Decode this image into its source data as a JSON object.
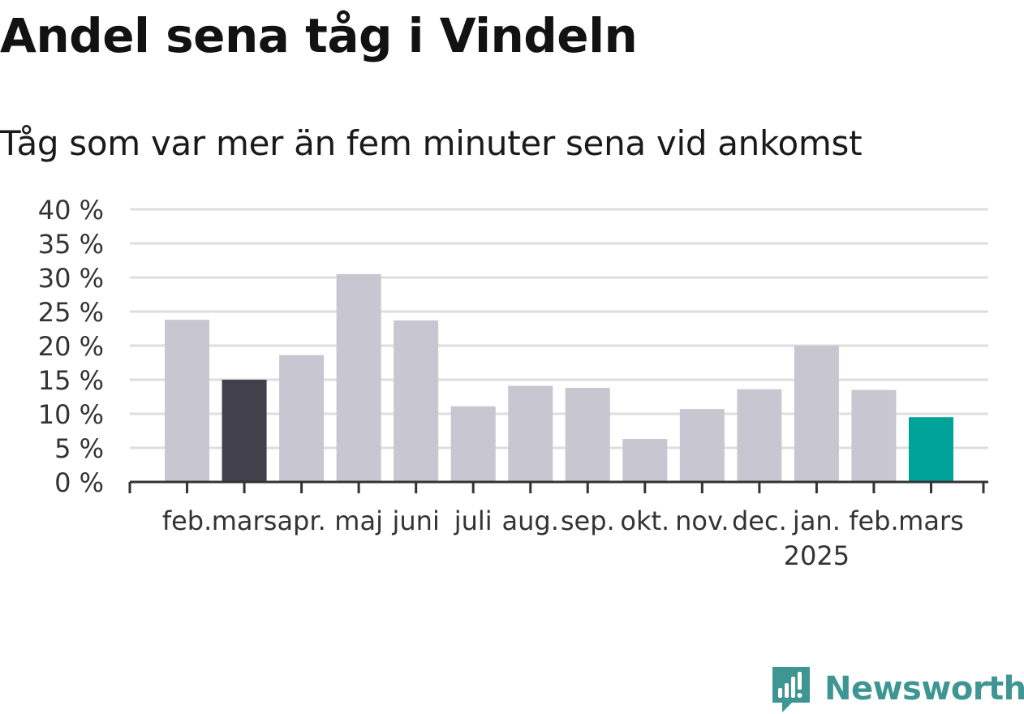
{
  "header": {
    "title": "Andel sena tåg i Vindeln",
    "subtitle": "Tåg som var mer än fem minuter sena vid ankomst"
  },
  "chart_data": {
    "type": "bar",
    "categories": [
      "feb.",
      "mars",
      "apr.",
      "maj",
      "juni",
      "juli",
      "aug.",
      "sep.",
      "okt.",
      "nov.",
      "dec.",
      "jan.",
      "feb.",
      "mars"
    ],
    "category_sublabels": [
      "",
      "",
      "",
      "",
      "",
      "",
      "",
      "",
      "",
      "",
      "",
      "2025",
      "",
      ""
    ],
    "values": [
      23.8,
      15.0,
      18.6,
      30.5,
      23.7,
      11.1,
      14.1,
      13.8,
      6.3,
      10.7,
      13.6,
      20.0,
      13.5,
      9.5
    ],
    "bar_colors": [
      "#c8c6d0",
      "#43404e",
      "#c8c6d0",
      "#c8c6d0",
      "#c8c6d0",
      "#c8c6d0",
      "#c8c6d0",
      "#c8c6d0",
      "#c8c6d0",
      "#c8c6d0",
      "#c8c6d0",
      "#c8c6d0",
      "#c8c6d0",
      "#00a399"
    ],
    "y_ticks": [
      0,
      5,
      10,
      15,
      20,
      25,
      30,
      35,
      40
    ],
    "y_tick_suffix": " %",
    "ylim": [
      0,
      40
    ],
    "grid": true,
    "xlabel": "",
    "ylabel": ""
  },
  "colors": {
    "grid": "#dedede",
    "axis": "#333333",
    "highlight": "#00a399",
    "previous_year": "#43404e",
    "default_bar": "#c8c6d0",
    "brand": "#3e9692"
  },
  "branding": {
    "logo_icon": "newsworthy-logo-icon",
    "logo_text": "Newsworthy"
  }
}
